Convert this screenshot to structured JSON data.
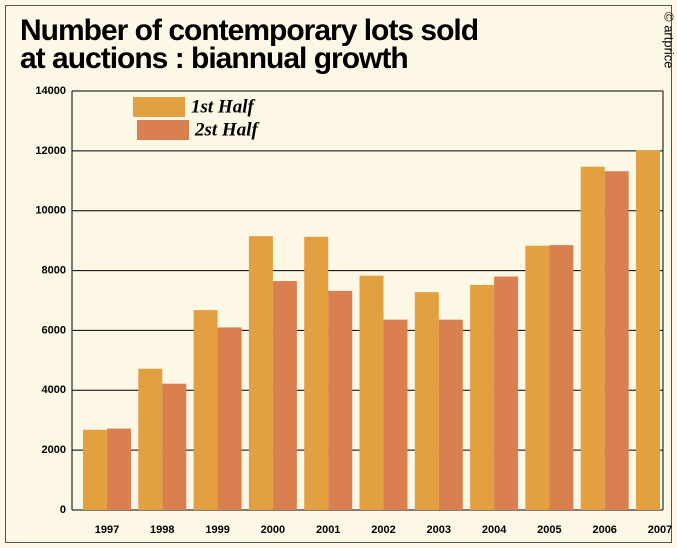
{
  "chart_data": {
    "type": "bar",
    "title_lines": [
      "Number of contemporary lots sold",
      "at auctions : biannual growth"
    ],
    "credit": "© artprice",
    "categories": [
      "1997",
      "1998",
      "1999",
      "2000",
      "2001",
      "2002",
      "2003",
      "2004",
      "2005",
      "2006",
      "2007"
    ],
    "series": [
      {
        "name": "1st Half",
        "color": "#e3a040",
        "values": [
          2680,
          4720,
          6680,
          9150,
          9130,
          7830,
          7280,
          7520,
          8830,
          11470,
          12020
        ]
      },
      {
        "name": "2st Half",
        "color": "#d97f50",
        "values": [
          2720,
          4220,
          6100,
          7650,
          7320,
          6360,
          6360,
          7800,
          8850,
          11320,
          null
        ]
      }
    ],
    "ylim": [
      0,
      14000
    ],
    "yticks": [
      0,
      2000,
      4000,
      6000,
      8000,
      10000,
      12000,
      14000
    ],
    "grid": true
  }
}
